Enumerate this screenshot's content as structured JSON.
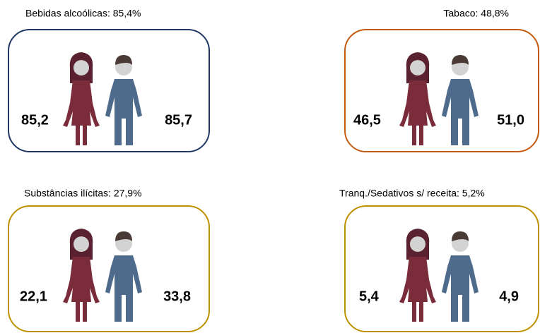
{
  "panels": [
    {
      "title": "Bebidas alcoólicas: 85,4%",
      "female": "85,2",
      "male": "85,7"
    },
    {
      "title": "Tabaco: 48,8%",
      "female": "46,5",
      "male": "51,0"
    },
    {
      "title": "Substâncias ilícitas: 27,9%",
      "female": "22,1",
      "male": "33,8"
    },
    {
      "title": "Tranq./Sedativos s/ receita: 5,2%",
      "female": "5,4",
      "male": "4,9"
    }
  ]
}
